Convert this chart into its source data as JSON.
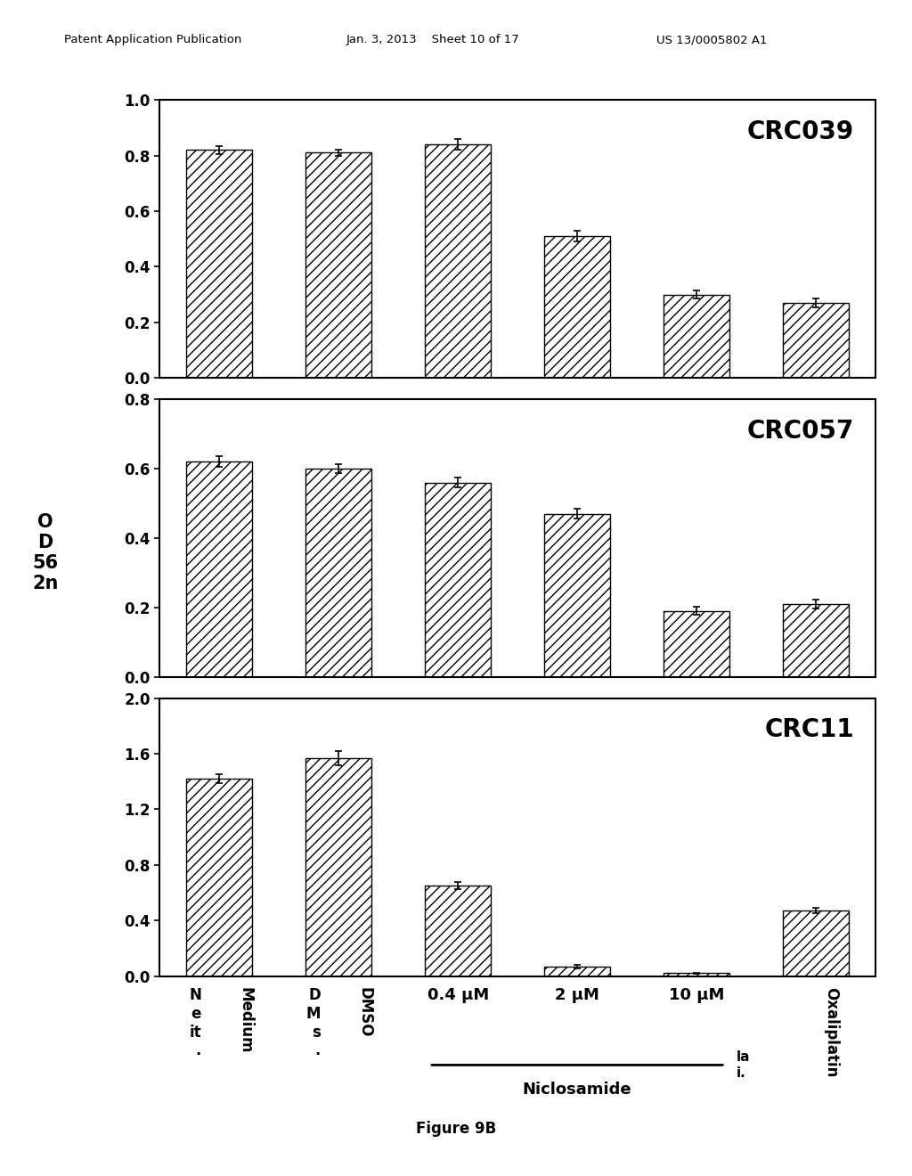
{
  "panels": [
    {
      "title": "CRC039",
      "ylim": [
        0.0,
        1.0
      ],
      "yticks": [
        0.0,
        0.2,
        0.4,
        0.6,
        0.8,
        1.0
      ],
      "values": [
        0.82,
        0.81,
        0.84,
        0.51,
        0.3,
        0.27
      ],
      "errors": [
        0.015,
        0.012,
        0.02,
        0.02,
        0.015,
        0.015
      ]
    },
    {
      "title": "CRC057",
      "ylim": [
        0.0,
        0.8
      ],
      "yticks": [
        0.0,
        0.2,
        0.4,
        0.6,
        0.8
      ],
      "values": [
        0.62,
        0.6,
        0.56,
        0.47,
        0.19,
        0.21
      ],
      "errors": [
        0.015,
        0.012,
        0.015,
        0.015,
        0.012,
        0.012
      ]
    },
    {
      "title": "CRC11",
      "ylim": [
        0.0,
        2.0
      ],
      "yticks": [
        0.0,
        0.4,
        0.8,
        1.2,
        1.6,
        2.0
      ],
      "values": [
        1.42,
        1.57,
        0.65,
        0.07,
        0.02,
        0.47
      ],
      "errors": [
        0.03,
        0.05,
        0.025,
        0.012,
        0.005,
        0.02
      ]
    }
  ],
  "categories_row1": [
    "N\ne\nit\n.",
    "D\nM\ns\n.",
    "0.4 μM",
    "2 μM",
    "10 μM",
    ""
  ],
  "categories_row2": [
    "Medium",
    "DMSO",
    "",
    "",
    "",
    "Oxaliplatin"
  ],
  "hatch": "///",
  "bar_width": 0.55,
  "ylabel": "O\nD\n56\n2n",
  "figure_caption": "Figure 9B",
  "background_color": "#ffffff",
  "niclosamide_label": "Niclosamide",
  "title_fontsize": 20,
  "tick_fontsize": 12,
  "label_fontsize": 13,
  "header_left": "Patent Application Publication",
  "header_mid": "Jan. 3, 2013    Sheet 10 of 17",
  "header_right": "US 13/0005802 A1"
}
